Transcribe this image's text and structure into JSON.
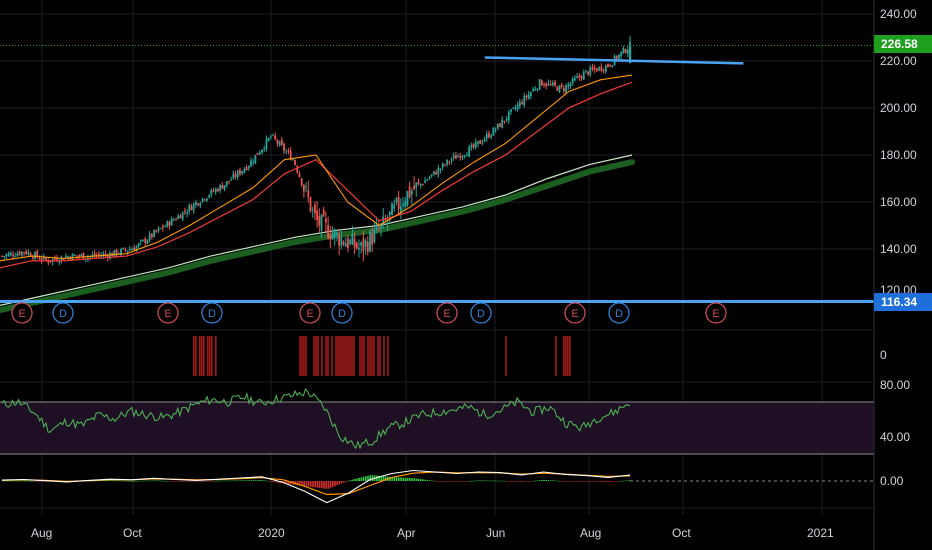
{
  "colors": {
    "background": "#000000",
    "grid": "#1c1f26",
    "axis_text": "#d1d4dc",
    "candle_up": "#26a69a",
    "candle_down": "#ef5350",
    "ema_fast": "#ff9800",
    "ema_slow": "#e53935",
    "sma_light": "#c8e6c9",
    "sma_heavy": "#1b5e20",
    "trendline": "#4aa3f0",
    "price_tag": "#1ea01e",
    "level_tag": "#1e6fd9",
    "volume_bar": "#a11a1a",
    "rsi_line": "#4caf50",
    "rsi_band": "#1e0f24",
    "macd_line": "#ffffff",
    "signal_line": "#ff9800",
    "hist_pos": "#2ecc40",
    "hist_neg": "#d32f2f"
  },
  "price_axis": {
    "ticks": [
      "240.00",
      "220.00",
      "200.00",
      "180.00",
      "160.00",
      "140.00",
      "120.00"
    ],
    "last_price_tag": "226.58",
    "level_tag": "116.34"
  },
  "rsi_axis": {
    "ticks": [
      "80.00",
      "40.00"
    ]
  },
  "volume_axis": {
    "ticks": [
      "0"
    ]
  },
  "macd_axis": {
    "ticks": [
      "0.00"
    ]
  },
  "time_axis": {
    "labels": [
      "Aug",
      "Oct",
      "2020",
      "Apr",
      "Jun",
      "Aug",
      "Oct",
      "2021"
    ]
  },
  "events": {
    "items": [
      {
        "label": "E",
        "kind": "earnings"
      },
      {
        "label": "D",
        "kind": "dividend"
      },
      {
        "label": "E",
        "kind": "earnings"
      },
      {
        "label": "D",
        "kind": "dividend"
      },
      {
        "label": "E",
        "kind": "earnings"
      },
      {
        "label": "D",
        "kind": "dividend"
      },
      {
        "label": "E",
        "kind": "earnings"
      },
      {
        "label": "D",
        "kind": "dividend"
      },
      {
        "label": "E",
        "kind": "earnings"
      },
      {
        "label": "D",
        "kind": "dividend"
      },
      {
        "label": "E",
        "kind": "earnings"
      }
    ]
  },
  "chart_data": [
    {
      "type": "candlestick",
      "panel": "price",
      "ylim": [
        112,
        244
      ],
      "x_dates": [
        "2019-07",
        "2019-08",
        "2019-09",
        "2019-10",
        "2019-11",
        "2019-12",
        "2020-01",
        "2020-02",
        "2020-03",
        "2020-04",
        "2020-05",
        "2020-06",
        "2020-07",
        "2020-08"
      ],
      "close_path": [
        137,
        139,
        135,
        137,
        137,
        138,
        141,
        148,
        155,
        162,
        168,
        176,
        188,
        178,
        152,
        145,
        140,
        150,
        163,
        170,
        178,
        183,
        191,
        201,
        211,
        208,
        215,
        218,
        226.58
      ],
      "moving_averages": [
        {
          "name": "EMA fast",
          "path": [
            135,
            137,
            136,
            137,
            138,
            143,
            150,
            158,
            166,
            178,
            180,
            160,
            150,
            158,
            168,
            177,
            185,
            196,
            207,
            212,
            214
          ]
        },
        {
          "name": "EMA slow",
          "path": [
            132,
            135,
            135,
            136,
            137,
            141,
            147,
            154,
            161,
            172,
            178,
            165,
            152,
            156,
            165,
            173,
            180,
            190,
            200,
            206,
            211
          ]
        },
        {
          "name": "SMA 200 light",
          "path": [
            116,
            120,
            124,
            128,
            132,
            137,
            141,
            145,
            148,
            150,
            154,
            158,
            163,
            170,
            176,
            180
          ]
        },
        {
          "name": "SMA 200 heavy",
          "path": [
            114,
            118,
            122,
            126,
            130,
            135,
            139,
            143,
            146,
            148,
            152,
            156,
            161,
            167,
            173,
            177
          ]
        }
      ],
      "trendline": {
        "from": {
          "x": "2020-05-25",
          "y": 221.5
        },
        "to": {
          "x": "2020-11-10",
          "y": 219
        }
      },
      "horizontal_level": 116.34,
      "last_price": 226.58
    },
    {
      "type": "bar",
      "panel": "volume_spikes",
      "clusters": [
        {
          "from": "2019-11-10",
          "to": "2019-11-25"
        },
        {
          "from": "2020-01-20",
          "to": "2020-03-20"
        },
        {
          "from": "2020-06-05",
          "to": "2020-06-08"
        },
        {
          "from": "2020-07-10",
          "to": "2020-07-20"
        }
      ]
    },
    {
      "type": "line",
      "panel": "rsi",
      "ylim": [
        25,
        88
      ],
      "band": [
        30,
        70
      ],
      "path": [
        68,
        70,
        62,
        48,
        55,
        52,
        60,
        57,
        63,
        60,
        58,
        62,
        68,
        72,
        70,
        74,
        69,
        72,
        75,
        78,
        66,
        44,
        36,
        40,
        50,
        54,
        60,
        62,
        64,
        66,
        60,
        64,
        70,
        62,
        66,
        54,
        50,
        58,
        62,
        70
      ]
    },
    {
      "type": "line",
      "panel": "macd",
      "series": [
        {
          "name": "MACD",
          "path": [
            0.3,
            0.5,
            0.1,
            -0.3,
            0.2,
            0.6,
            0.4,
            0.9,
            0.5,
            0.2,
            0.6,
            1.0,
            1.4,
            -0.5,
            -3.5,
            -7.2,
            -4,
            0.5,
            2.5,
            3.5,
            3.0,
            2.5,
            3.0,
            2.8,
            2.0,
            3.0,
            2.2,
            1.8,
            1.2,
            2.0
          ]
        },
        {
          "name": "Signal",
          "path": [
            0.2,
            0.4,
            0.2,
            -0.1,
            0.1,
            0.4,
            0.4,
            0.7,
            0.6,
            0.4,
            0.5,
            0.8,
            1.1,
            0.4,
            -1.8,
            -4.5,
            -4.2,
            -1.5,
            1.2,
            2.6,
            3.0,
            2.7,
            2.8,
            2.7,
            2.3,
            2.6,
            2.3,
            1.9,
            1.5,
            1.7
          ]
        }
      ]
    }
  ]
}
